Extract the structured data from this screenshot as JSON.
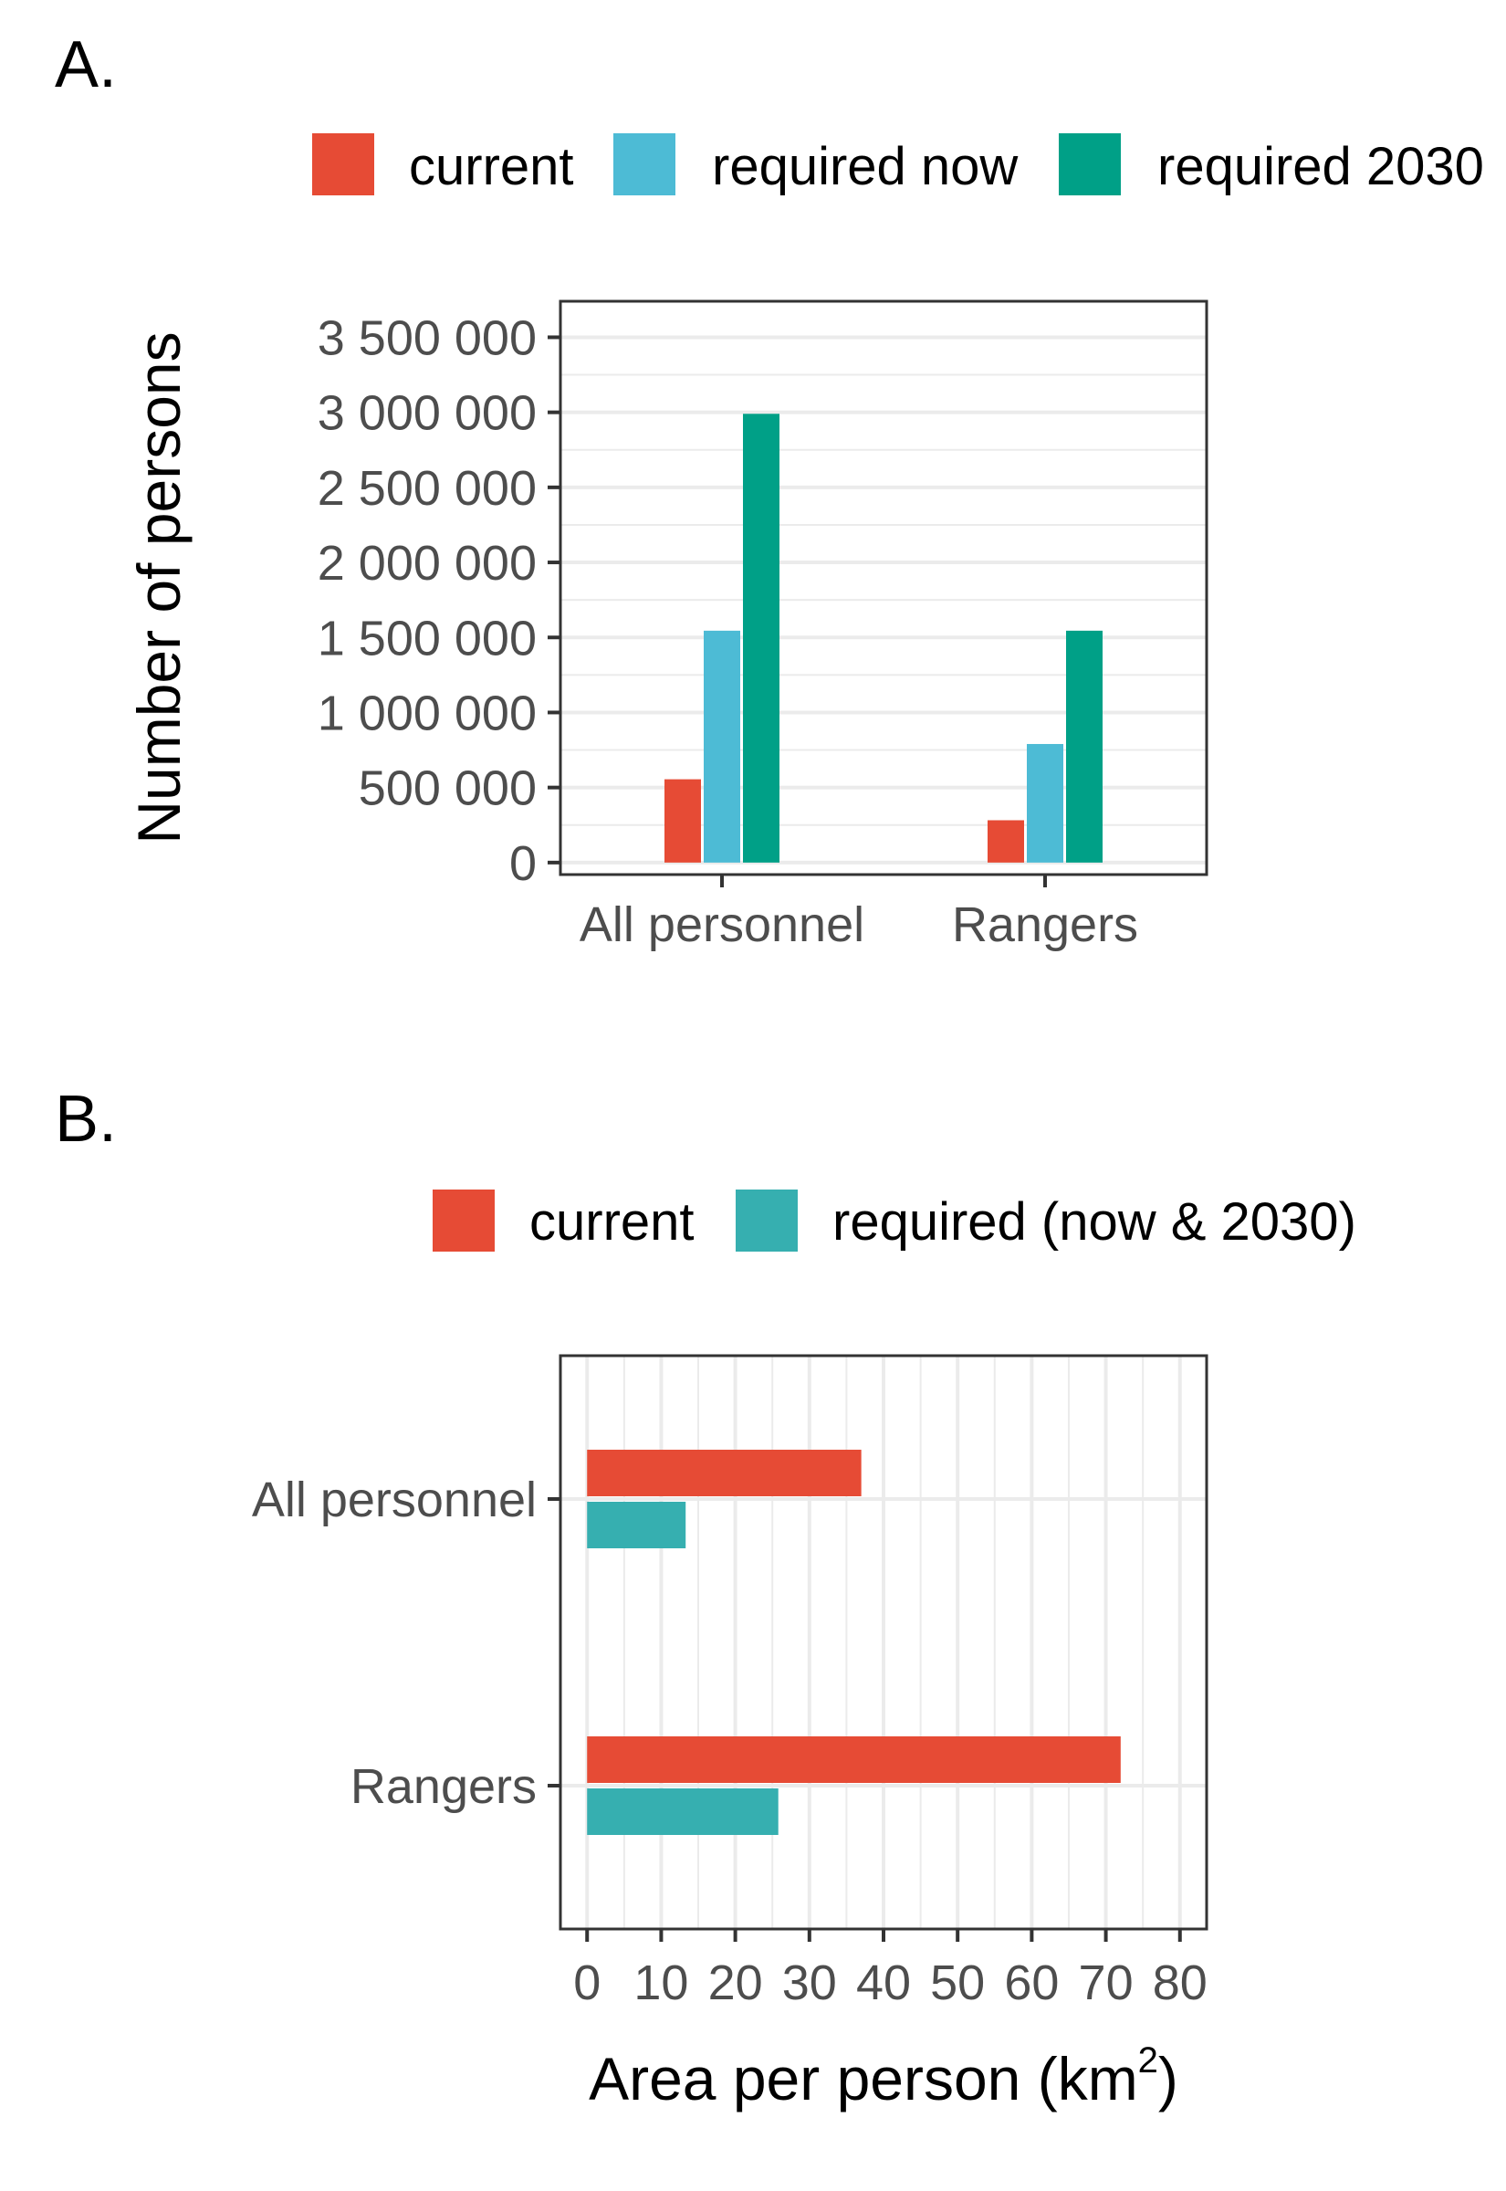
{
  "chart_data": [
    {
      "type": "bar",
      "panel_label": "A.",
      "orientation": "vertical",
      "categories": [
        "All personnel",
        "Rangers"
      ],
      "series": [
        {
          "name": "current",
          "color": "#E64B35",
          "values": [
            555000,
            282000
          ]
        },
        {
          "name": "required now",
          "color": "#4DBBD5",
          "values": [
            1545000,
            790000
          ]
        },
        {
          "name": "required 2030",
          "color": "#00A087",
          "values": [
            2990000,
            1545000
          ]
        }
      ],
      "xlabel": "",
      "ylabel": "Number of persons",
      "ylim": [
        -80000,
        3740000
      ],
      "yticks": [
        0,
        500000,
        1000000,
        1500000,
        2000000,
        2500000,
        3000000,
        3500000
      ],
      "ytick_labels": [
        "0",
        "500 000",
        "1 000 000",
        "1 500 000",
        "2 000 000",
        "2 500 000",
        "3 000 000",
        "3 500 000"
      ],
      "grid": true,
      "legend_position": "top"
    },
    {
      "type": "bar",
      "panel_label": "B.",
      "orientation": "horizontal",
      "categories": [
        "All personnel",
        "Rangers"
      ],
      "series": [
        {
          "name": "current",
          "color": "#E64B35",
          "values": [
            37,
            72
          ]
        },
        {
          "name": "required (now & 2030)",
          "color": "#36AFB0",
          "values": [
            13.3,
            25.8
          ]
        }
      ],
      "xlabel": "Area per person (km",
      "xlabel_superscript": "2",
      "xlabel_suffix": ")",
      "ylabel": "",
      "xlim": [
        -3.6,
        83.6
      ],
      "xticks": [
        0,
        10,
        20,
        30,
        40,
        50,
        60,
        70,
        80
      ],
      "xtick_labels": [
        "0",
        "10",
        "20",
        "30",
        "40",
        "50",
        "60",
        "70",
        "80"
      ],
      "grid": true,
      "legend_position": "top"
    }
  ]
}
